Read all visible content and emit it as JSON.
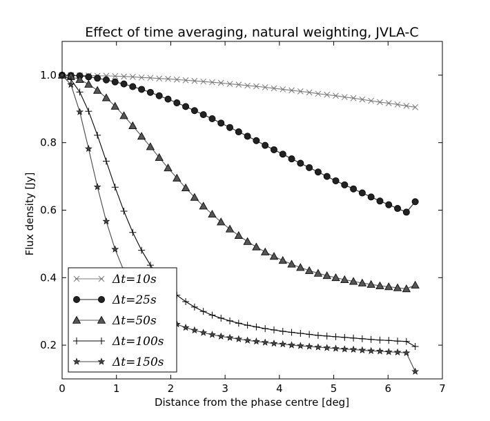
{
  "chart_data": {
    "type": "line",
    "title": "Effect of time averaging, natural weighting, JVLA-C",
    "xlabel": "Distance from the phase centre [deg]",
    "ylabel": "Flux density [Jy]",
    "xlim": [
      0,
      7
    ],
    "ylim": [
      0.1,
      1.1
    ],
    "xticks": [
      "0",
      "1",
      "2",
      "3",
      "4",
      "5",
      "6",
      "7"
    ],
    "yticks": [
      "0.2",
      "0.4",
      "0.6",
      "0.8",
      "1.0"
    ],
    "grid": false,
    "legend_position": "lower-left",
    "x": [
      0.0,
      0.1625,
      0.325,
      0.4875,
      0.65,
      0.8125,
      0.975,
      1.1375,
      1.3,
      1.4625,
      1.625,
      1.7875,
      1.95,
      2.1125,
      2.275,
      2.4375,
      2.6,
      2.7625,
      2.925,
      3.0875,
      3.25,
      3.4125,
      3.575,
      3.7375,
      3.9,
      4.0625,
      4.225,
      4.3875,
      4.55,
      4.7125,
      4.875,
      5.0375,
      5.2,
      5.3625,
      5.525,
      5.6875,
      5.85,
      6.0125,
      6.175,
      6.3375,
      6.5
    ],
    "series": [
      {
        "name": "Δt=10s",
        "marker": "x",
        "color": "#777777",
        "values": [
          1.0,
          1.0,
          0.999,
          0.999,
          0.998,
          0.998,
          0.997,
          0.996,
          0.995,
          0.993,
          0.992,
          0.99,
          0.989,
          0.987,
          0.985,
          0.983,
          0.981,
          0.979,
          0.977,
          0.974,
          0.972,
          0.969,
          0.967,
          0.964,
          0.961,
          0.958,
          0.955,
          0.952,
          0.949,
          0.945,
          0.942,
          0.939,
          0.935,
          0.932,
          0.928,
          0.924,
          0.92,
          0.917,
          0.913,
          0.909,
          0.905
        ]
      },
      {
        "name": "Δt=25s",
        "marker": "circle",
        "color": "#222222",
        "values": [
          1.0,
          0.999,
          0.998,
          0.995,
          0.991,
          0.986,
          0.98,
          0.974,
          0.966,
          0.958,
          0.949,
          0.939,
          0.929,
          0.918,
          0.907,
          0.895,
          0.883,
          0.871,
          0.858,
          0.845,
          0.832,
          0.819,
          0.806,
          0.792,
          0.779,
          0.766,
          0.752,
          0.739,
          0.726,
          0.713,
          0.7,
          0.687,
          0.675,
          0.663,
          0.651,
          0.639,
          0.627,
          0.616,
          0.605,
          0.594,
          0.625
        ]
      },
      {
        "name": "Δt=50s",
        "marker": "triangle",
        "color": "#555555",
        "values": [
          1.0,
          0.996,
          0.987,
          0.973,
          0.955,
          0.933,
          0.908,
          0.88,
          0.85,
          0.819,
          0.788,
          0.756,
          0.725,
          0.695,
          0.666,
          0.638,
          0.612,
          0.588,
          0.565,
          0.544,
          0.525,
          0.507,
          0.491,
          0.476,
          0.463,
          0.451,
          0.44,
          0.43,
          0.421,
          0.413,
          0.406,
          0.4,
          0.394,
          0.389,
          0.384,
          0.38,
          0.376,
          0.373,
          0.37,
          0.367,
          0.378
        ]
      },
      {
        "name": "Δt=100s",
        "marker": "plus",
        "color": "#000000",
        "values": [
          1.0,
          0.987,
          0.95,
          0.893,
          0.822,
          0.745,
          0.668,
          0.597,
          0.534,
          0.481,
          0.437,
          0.401,
          0.372,
          0.348,
          0.329,
          0.313,
          0.3,
          0.289,
          0.28,
          0.272,
          0.265,
          0.259,
          0.254,
          0.249,
          0.245,
          0.241,
          0.238,
          0.235,
          0.232,
          0.229,
          0.227,
          0.225,
          0.223,
          0.221,
          0.219,
          0.217,
          0.215,
          0.214,
          0.212,
          0.211,
          0.196
        ]
      },
      {
        "name": "Δt=150s",
        "marker": "star",
        "color": "#444444",
        "values": [
          1.0,
          0.972,
          0.891,
          0.782,
          0.669,
          0.567,
          0.484,
          0.42,
          0.372,
          0.336,
          0.31,
          0.29,
          0.274,
          0.262,
          0.252,
          0.244,
          0.237,
          0.231,
          0.226,
          0.222,
          0.218,
          0.214,
          0.211,
          0.208,
          0.205,
          0.203,
          0.2,
          0.198,
          0.196,
          0.194,
          0.192,
          0.19,
          0.188,
          0.187,
          0.185,
          0.183,
          0.182,
          0.18,
          0.179,
          0.177,
          0.122
        ]
      }
    ]
  }
}
